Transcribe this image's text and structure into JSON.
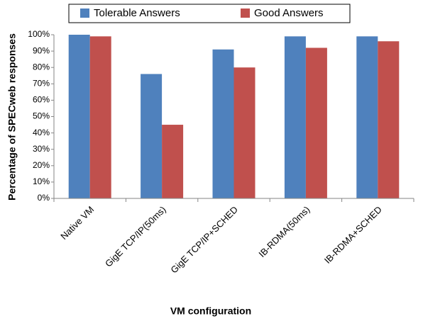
{
  "chart_data": {
    "type": "bar",
    "xlabel": "VM configuration",
    "ylabel": "Percentage of SPECweb responses",
    "categories": [
      "Native VM",
      "GigE TCP/IP(50ms)",
      "GigE TCP/IP+SCHED",
      "IB-RDMA(50ms)",
      "IB-RDMA+SCHED"
    ],
    "series": [
      {
        "name": "Tolerable Answers",
        "color": "#4f81bd",
        "values": [
          100,
          76,
          91,
          99,
          99
        ]
      },
      {
        "name": "Good Answers",
        "color": "#c0504d",
        "values": [
          99,
          45,
          80,
          92,
          96
        ]
      }
    ],
    "ylim": [
      0,
      100
    ],
    "yticks": [
      {
        "value": 0,
        "label": "0%"
      },
      {
        "value": 10,
        "label": "10%"
      },
      {
        "value": 20,
        "label": "20%"
      },
      {
        "value": 30,
        "label": "30%"
      },
      {
        "value": 40,
        "label": "40%"
      },
      {
        "value": 50,
        "label": "50%"
      },
      {
        "value": 60,
        "label": "60%"
      },
      {
        "value": 70,
        "label": "70%"
      },
      {
        "value": 80,
        "label": "80%"
      },
      {
        "value": 90,
        "label": "90%"
      },
      {
        "value": 100,
        "label": "100%"
      }
    ],
    "grid": false,
    "legend": "top"
  }
}
